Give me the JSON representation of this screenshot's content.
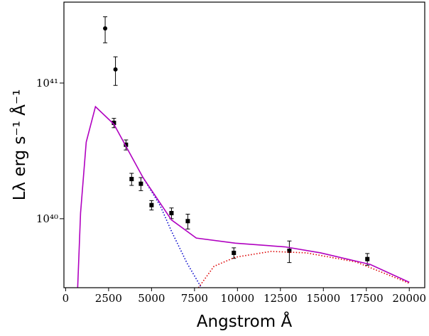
{
  "chart_data": {
    "type": "scatter",
    "x_label": "Angstrom Å",
    "y_label": "Lλ erg s⁻¹ Å⁻¹",
    "xlim": [
      -100,
      20900
    ],
    "xticks": [
      0,
      2500,
      5000,
      7500,
      10000,
      12500,
      15000,
      17500,
      20000
    ],
    "ylim": [
      3.1e+39,
      3.95e+41
    ],
    "yticks": [
      {
        "value": 1e+40,
        "label": "10⁴⁰"
      },
      {
        "value": 1e+41,
        "label": "10⁴¹"
      }
    ],
    "log_y": true,
    "series": [
      {
        "kind": "points",
        "marker": "circle",
        "color": "#000000",
        "x": [
          2300,
          2900
        ],
        "values": [
          2.53e+41,
          1.26e+41
        ],
        "errors": [
          5.5e+40,
          3e+40
        ]
      },
      {
        "kind": "points",
        "marker": "square",
        "color": "#000000",
        "x": [
          2810,
          3510,
          3840,
          4380,
          5000,
          6160,
          7110,
          9790,
          13020,
          17560
        ],
        "values": [
          5.09e+40,
          3.51e+40,
          1.96e+40,
          1.81e+40,
          1.26e+40,
          1.1e+40,
          9.6e+39,
          5.6e+39,
          5.8e+39,
          5.04e+39
        ],
        "errors": [
          4e+39,
          3e+39,
          2e+39,
          2e+39,
          1e+39,
          1e+39,
          1.2e+39,
          5e+38,
          1.05e+39,
          5e+38
        ]
      },
      {
        "kind": "line",
        "style": "dotted",
        "color": "#0000cc",
        "x": [
          4504,
          5500,
          6157,
          7066,
          7900
        ],
        "values": [
          2.01e+40,
          1.25e+40,
          8.1e+39,
          4.7e+39,
          3.1e+39
        ]
      },
      {
        "kind": "line",
        "style": "dotted",
        "color": "#dd0000",
        "x": [
          7727,
          8636,
          9876,
          11942,
          14008,
          16901,
          20000
        ],
        "values": [
          3.1e+39,
          4.46e+39,
          5.2e+39,
          5.74e+39,
          5.6e+39,
          4.8e+39,
          3.34e+39
        ]
      },
      {
        "kind": "line",
        "style": "solid",
        "color": "#b000c0",
        "x": [
          700,
          868,
          1198,
          1735,
          2810,
          4504,
          6157,
          7603,
          9876,
          12769,
          14835,
          17727,
          20000
        ],
        "values": [
          3.1e+39,
          1.1e+40,
          3.67e+40,
          6.7e+40,
          4.97e+40,
          2.01e+40,
          9.8e+39,
          7.2e+39,
          6.6e+39,
          6.2e+39,
          5.6e+39,
          4.6e+39,
          3.4e+39
        ]
      }
    ]
  }
}
